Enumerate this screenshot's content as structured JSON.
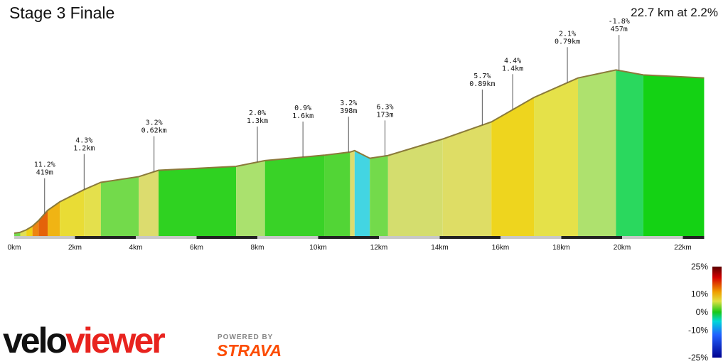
{
  "header": {
    "title": "Stage 3 Finale",
    "summary": "22.7 km at 2.2%"
  },
  "branding": {
    "logo_part1": "velo",
    "logo_part2": "viewer",
    "powered_by": "POWERED BY",
    "partner": "STRAVA",
    "colors": {
      "velo": "#111111",
      "viewer": "#e8231e",
      "strava": "#fc4c02"
    }
  },
  "chart_data": {
    "type": "area",
    "title": "Stage 3 Finale",
    "xlabel": "",
    "ylabel": "",
    "x_unit": "km",
    "xlim": [
      0,
      22.7
    ],
    "x_ticks": [
      "0km",
      "2km",
      "4km",
      "6km",
      "8km",
      "10km",
      "12km",
      "14km",
      "16km",
      "18km",
      "20km",
      "22km"
    ],
    "x_tick_values": [
      0,
      2,
      4,
      6,
      8,
      10,
      12,
      14,
      16,
      18,
      20,
      22
    ],
    "grid": false,
    "profile_km": [
      0,
      0.2,
      0.4,
      0.6,
      0.8,
      1.1,
      1.5,
      2.3,
      2.85,
      4.1,
      4.75,
      7.3,
      8.25,
      10.2,
      11.05,
      11.2,
      11.7,
      12.3,
      14.1,
      15.7,
      17.1,
      18.55,
      19.8,
      20.7,
      22.7
    ],
    "profile_grade": [
      1.5,
      4,
      6,
      9,
      11.2,
      7,
      5,
      4.3,
      1.5,
      3.2,
      0.5,
      2.0,
      0.9,
      1.2,
      3.2,
      -5,
      1.5,
      3.0,
      3.5,
      5.7,
      4.4,
      2.1,
      -1.8,
      -0.5,
      0.2
    ],
    "climbs": [
      {
        "grade": "11.2%",
        "length": "419m",
        "km": 1.0
      },
      {
        "grade": "4.3%",
        "length": "1.2km",
        "km": 2.3
      },
      {
        "grade": "3.2%",
        "length": "0.62km",
        "km": 4.6
      },
      {
        "grade": "2.0%",
        "length": "1.3km",
        "km": 8.0
      },
      {
        "grade": "0.9%",
        "length": "1.6km",
        "km": 9.5
      },
      {
        "grade": "3.2%",
        "length": "398m",
        "km": 11.0
      },
      {
        "grade": "6.3%",
        "length": "173m",
        "km": 12.2
      },
      {
        "grade": "5.7%",
        "length": "0.89km",
        "km": 15.4
      },
      {
        "grade": "4.4%",
        "length": "1.4km",
        "km": 16.4
      },
      {
        "grade": "2.1%",
        "length": "0.79km",
        "km": 18.2
      },
      {
        "grade": "-1.8%",
        "length": "457m",
        "km": 19.9
      }
    ],
    "legend": {
      "labels": [
        "25%",
        "10%",
        "0%",
        "-10%",
        "-25%"
      ],
      "values": [
        25,
        10,
        0,
        -10,
        -25
      ],
      "placement": "bottom-right"
    }
  }
}
